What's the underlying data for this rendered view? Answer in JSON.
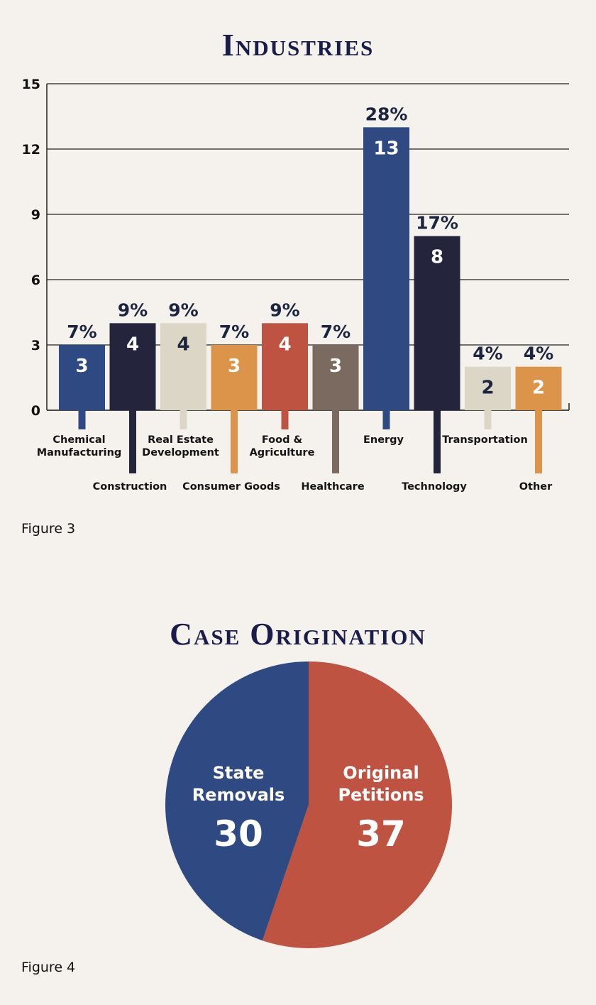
{
  "figure3": {
    "caption": "Figure 3",
    "chart_data": {
      "type": "bar",
      "title": "Industries",
      "xlabel": "",
      "ylabel": "",
      "ylim": [
        0,
        15
      ],
      "yticks": [
        0,
        3,
        6,
        9,
        12,
        15
      ],
      "grid": true,
      "categories": [
        {
          "label": [
            "Chemical",
            "Manufacturing"
          ],
          "value": 3,
          "percent": "7%",
          "color": "#2f4a83",
          "stem": "short"
        },
        {
          "label": [
            "Construction"
          ],
          "value": 4,
          "percent": "9%",
          "color": "#24253c",
          "stem": "long"
        },
        {
          "label": [
            "Real Estate",
            "Development"
          ],
          "value": 4,
          "percent": "9%",
          "color": "#dcd6c6",
          "stem": "short"
        },
        {
          "label": [
            "Consumer Goods"
          ],
          "value": 3,
          "percent": "7%",
          "color": "#db944a",
          "stem": "long"
        },
        {
          "label": [
            "Food &",
            "Agriculture"
          ],
          "value": 4,
          "percent": "9%",
          "color": "#bf5341",
          "stem": "short"
        },
        {
          "label": [
            "Healthcare"
          ],
          "value": 3,
          "percent": "7%",
          "color": "#7b6a60",
          "stem": "long"
        },
        {
          "label": [
            "Energy"
          ],
          "value": 13,
          "percent": "28%",
          "color": "#2f4a83",
          "stem": "short"
        },
        {
          "label": [
            "Technology"
          ],
          "value": 8,
          "percent": "17%",
          "color": "#24253c",
          "stem": "long"
        },
        {
          "label": [
            "Transportation"
          ],
          "value": 2,
          "percent": "4%",
          "color": "#dcd6c6",
          "stem": "short"
        },
        {
          "label": [
            "Other"
          ],
          "value": 2,
          "percent": "4%",
          "color": "#db944a",
          "stem": "long"
        }
      ]
    }
  },
  "figure4": {
    "caption": "Figure 4",
    "chart_data": {
      "type": "pie",
      "title": "Case Origination",
      "slices": [
        {
          "label": [
            "Original",
            "Petitions"
          ],
          "value": 37,
          "color": "#bf5341"
        },
        {
          "label": [
            "State",
            "Removals"
          ],
          "value": 30,
          "color": "#2f4a83"
        }
      ]
    }
  },
  "colors": {
    "title": "#1a1d4a",
    "dark_text": "#1c2440",
    "light_text": "#ffffff",
    "background": "#f5f2ee"
  }
}
